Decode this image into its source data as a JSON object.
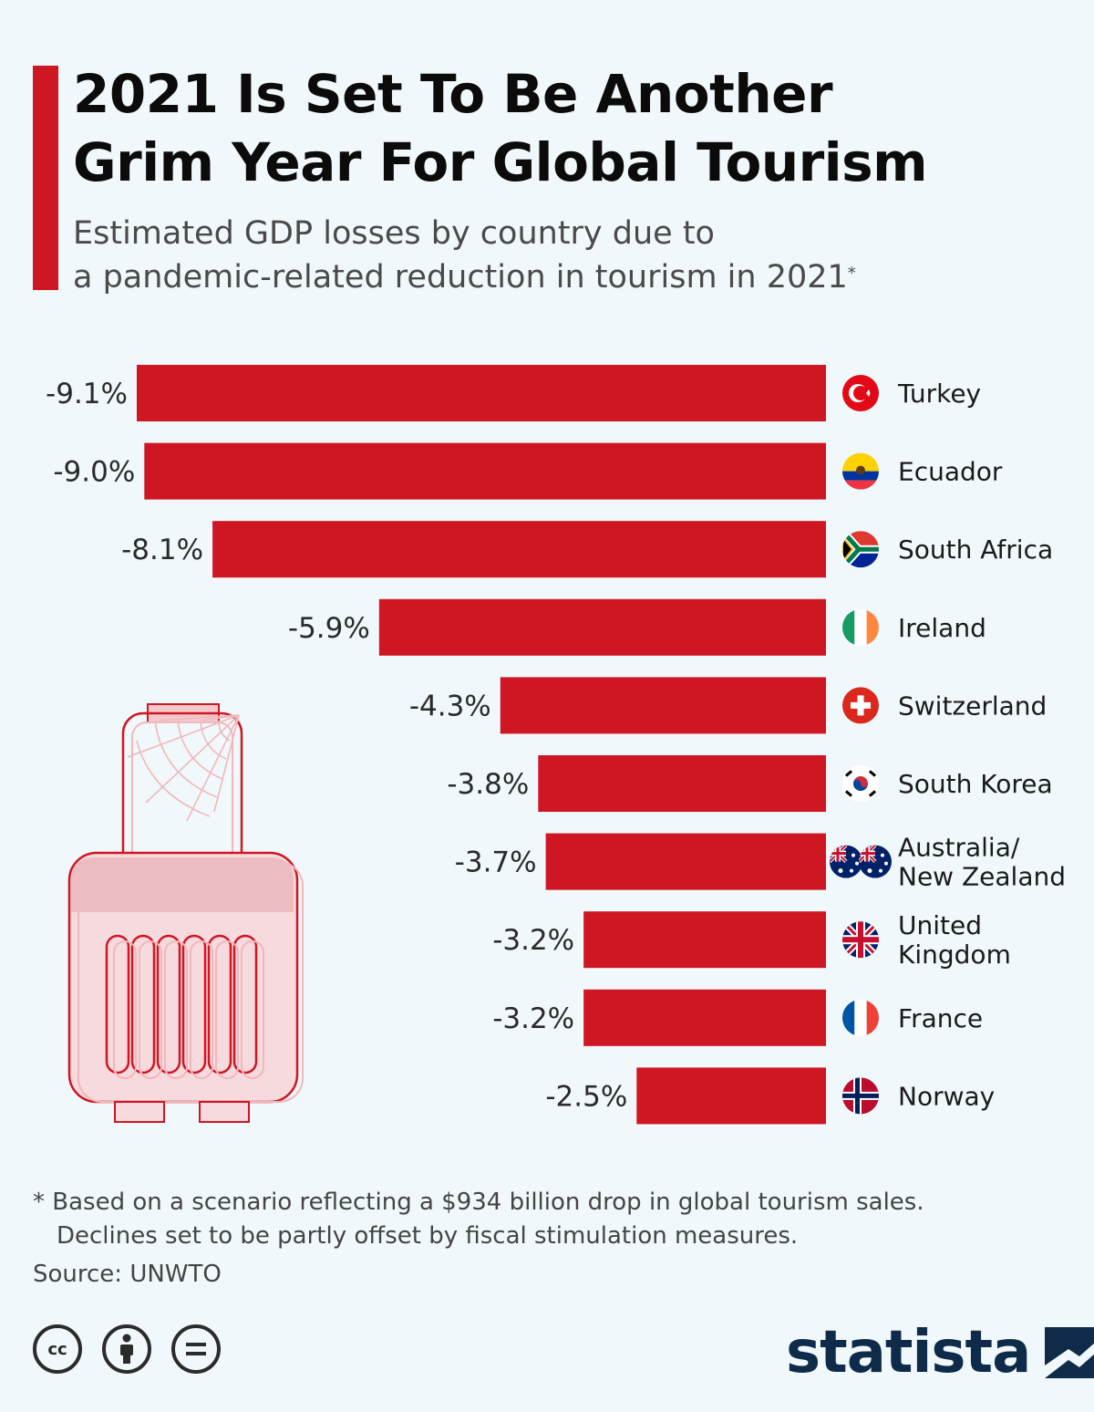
{
  "header": {
    "title_line1": "2021 Is Set To Be Another",
    "title_line2": "Grim Year For Global Tourism",
    "subtitle_line1": "Estimated GDP losses by country due to",
    "subtitle_line2": "a pandemic-related reduction in tourism in 2021",
    "subtitle_mark": "*"
  },
  "colors": {
    "accent": "#cf1623",
    "background": "#f1f8fb",
    "brand": "#0f2b4a"
  },
  "chart_data": {
    "type": "bar",
    "orientation": "horizontal",
    "title": "2021 Is Set To Be Another Grim Year For Global Tourism",
    "subtitle": "Estimated GDP losses by country due to a pandemic-related reduction in tourism in 2021",
    "categories": [
      "Turkey",
      "Ecuador",
      "South Africa",
      "Ireland",
      "Switzerland",
      "South Korea",
      "Australia/New Zealand",
      "United Kingdom",
      "France",
      "Norway"
    ],
    "category_lines": [
      [
        "Turkey"
      ],
      [
        "Ecuador"
      ],
      [
        "South Africa"
      ],
      [
        "Ireland"
      ],
      [
        "Switzerland"
      ],
      [
        "South Korea"
      ],
      [
        "Australia/",
        "New Zealand"
      ],
      [
        "United",
        "Kingdom"
      ],
      [
        "France"
      ],
      [
        "Norway"
      ]
    ],
    "flag_icons": [
      "turkey-flag-icon",
      "ecuador-flag-icon",
      "south-africa-flag-icon",
      "ireland-flag-icon",
      "switzerland-flag-icon",
      "south-korea-flag-icon",
      "australia-new-zealand-flag-icon",
      "united-kingdom-flag-icon",
      "france-flag-icon",
      "norway-flag-icon"
    ],
    "values": [
      -9.1,
      -9.0,
      -8.1,
      -5.9,
      -4.3,
      -3.8,
      -3.7,
      -3.2,
      -3.2,
      -2.5
    ],
    "value_labels": [
      "-9.1%",
      "-9.0%",
      "-8.1%",
      "-5.9%",
      "-4.3%",
      "-3.8%",
      "-3.7%",
      "-3.2%",
      "-3.2%",
      "-2.5%"
    ],
    "unit": "% of GDP",
    "xlim": [
      -9.1,
      0
    ],
    "bar_color": "#cf1623",
    "grid": false,
    "legend": "none"
  },
  "footer": {
    "note_line1": "* Based on a scenario reflecting a $934 billion drop in global tourism sales.",
    "note_line2": "Declines set to be partly offset by fiscal stimulation measures.",
    "source": "Source: UNWTO",
    "brand": "statista",
    "license_icons": [
      "cc-icon",
      "attribution-icon",
      "no-derivatives-icon"
    ]
  }
}
